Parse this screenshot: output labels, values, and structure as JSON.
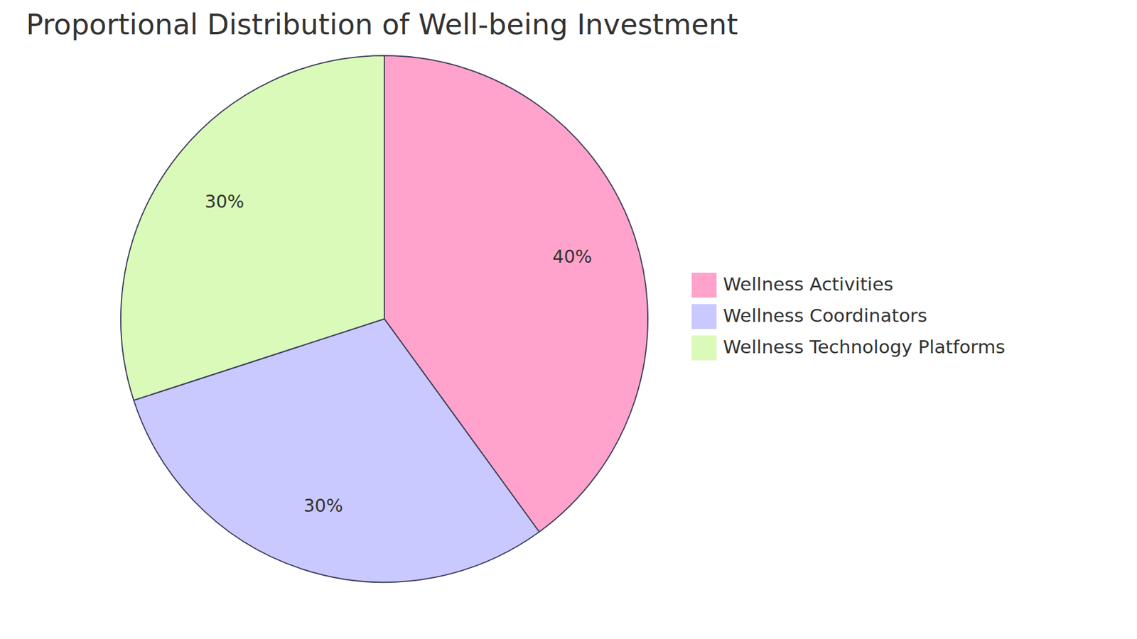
{
  "chart_data": {
    "type": "pie",
    "title": "Proportional Distribution of Well-being Investment",
    "categories": [
      "Wellness Activities",
      "Wellness Coordinators",
      "Wellness Technology Platforms"
    ],
    "values": [
      40,
      30,
      30
    ],
    "value_labels": [
      "40%",
      "30%",
      "30%"
    ],
    "colors": [
      "#ffa3cc",
      "#c9c9ff",
      "#dafab9"
    ],
    "data_labels": true
  }
}
